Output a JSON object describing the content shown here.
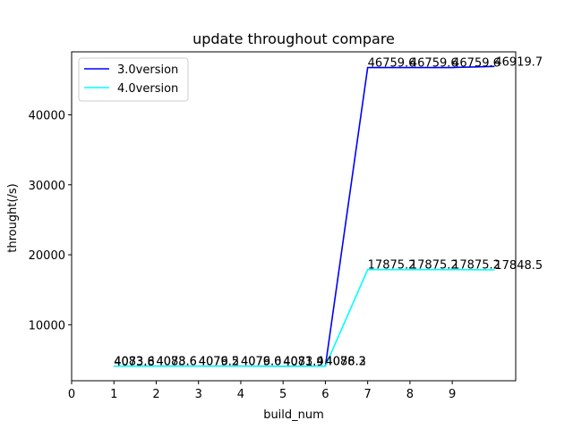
{
  "chart_data": {
    "type": "line",
    "title": "update throughout compare",
    "xlabel": "build_num",
    "ylabel": "throught(/s)",
    "x": [
      1,
      2,
      3,
      4,
      5,
      6,
      7,
      8,
      9,
      10
    ],
    "xticks": [
      0,
      1,
      2,
      3,
      4,
      5,
      6,
      7,
      8,
      9
    ],
    "yticks": [
      10000,
      20000,
      30000,
      40000
    ],
    "xlim": [
      0,
      10.5
    ],
    "ylim": [
      2000,
      49000
    ],
    "grid": false,
    "legend_position": "upper-left",
    "series": [
      {
        "name": "3.0version",
        "color": "#0000ff",
        "values": [
          4073.8,
          4078.6,
          4079.2,
          4079.0,
          4071.9,
          4078.3,
          46759.6,
          46759.6,
          46759.6,
          46919.7
        ],
        "labels": [
          "4073.8",
          "4078.6",
          "4079.2",
          "4079.0",
          "4071.9",
          "4078.3",
          "46759.6",
          "46759.6",
          "46759.6",
          "46919.7"
        ]
      },
      {
        "name": "4.0version",
        "color": "#00ffff",
        "values": [
          4083.6,
          4083.6,
          4076.5,
          4076.6,
          4083.4,
          4086.2,
          17875.2,
          17875.2,
          17875.2,
          17848.5
        ],
        "labels": [
          "4083.6",
          "4083.6",
          "4076.5",
          "4076.6",
          "4083.4",
          "4086.2",
          "17875.2",
          "17875.2",
          "17875.2",
          "17848.5"
        ]
      }
    ]
  }
}
